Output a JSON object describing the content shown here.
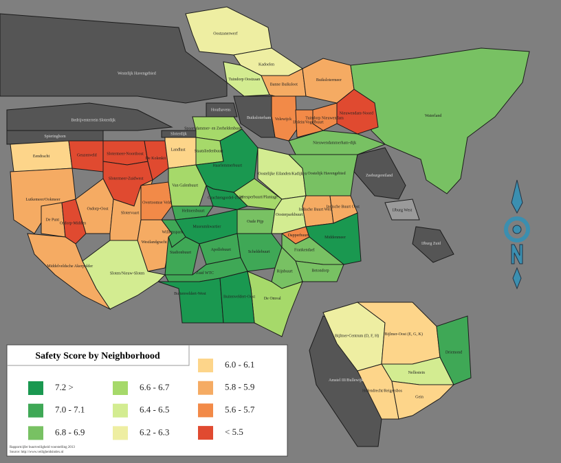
{
  "title": "Safety Score by Neighborhood",
  "legend": [
    {
      "label": "7.2 >",
      "color": "#1a9850"
    },
    {
      "label": "7.0 - 7.1",
      "color": "#3fa856"
    },
    {
      "label": "6.8 - 6.9",
      "color": "#78c163"
    },
    {
      "label": "6.6 - 6.7",
      "color": "#a6d96a"
    },
    {
      "label": "6.4 - 6.5",
      "color": "#d3ec91"
    },
    {
      "label": "6.2 - 6.3",
      "color": "#eeeea2"
    },
    {
      "label": "6.0 - 6.1",
      "color": "#fdd58a"
    },
    {
      "label": "5.8 - 5.9",
      "color": "#f5ab63"
    },
    {
      "label": "5.6 - 5.7",
      "color": "#f28a48"
    },
    {
      "label": "< 5.5",
      "color": "#e04a30"
    }
  ],
  "neighborhoods": [
    {
      "name": "Oostzanerwerf",
      "color": "#eeeea2"
    },
    {
      "name": "Kadoelen",
      "color": "#eeeea2"
    },
    {
      "name": "Tuindorp Oostzaan",
      "color": "#d3ec91"
    },
    {
      "name": "Banne Buiksloot",
      "color": "#f5ab63"
    },
    {
      "name": "Buikslotermeer",
      "color": "#f5ab63"
    },
    {
      "name": "Waterland",
      "color": "#78c163"
    },
    {
      "name": "Nieuwendam-Noord",
      "color": "#e04a30"
    },
    {
      "name": "Tuindorp Nieuwendam",
      "color": "#f28a48"
    },
    {
      "name": "Volewijck",
      "color": "#f28a48"
    },
    {
      "name": "IJplein/Vogelbuurt",
      "color": "#f28a48"
    },
    {
      "name": "Nieuwendammerham-dijk",
      "color": "#78c163"
    },
    {
      "name": "Buiksloterham",
      "color": "#555555"
    },
    {
      "name": "Westelijk Havengebied",
      "color": "#555555"
    },
    {
      "name": "Bedrijventerrein Sloterdijk",
      "color": "#555555"
    },
    {
      "name": "Spieringhorn",
      "color": "#555555"
    },
    {
      "name": "Eendracht",
      "color": "#fdd58a"
    },
    {
      "name": "Geuzenveld",
      "color": "#e04a30"
    },
    {
      "name": "Slotermeer-Noordoost",
      "color": "#e04a30"
    },
    {
      "name": "Slotermeer-Zuidwest",
      "color": "#e04a30"
    },
    {
      "name": "Lutkemeer/Ookmeer",
      "color": "#f5ab63"
    },
    {
      "name": "De Punt",
      "color": "#f5ab63"
    },
    {
      "name": "Osdorp-Midden",
      "color": "#e04a30"
    },
    {
      "name": "Osdorp-Oost",
      "color": "#f5ab63"
    },
    {
      "name": "Middelveldsche Akerpolder",
      "color": "#f5ab63"
    },
    {
      "name": "Slotervaart",
      "color": "#f5ab63"
    },
    {
      "name": "Overtoomse Veld",
      "color": "#f28a48"
    },
    {
      "name": "Westlandgracht",
      "color": "#f5ab63"
    },
    {
      "name": "Sloten/Nieuw-Sloten",
      "color": "#d3ec91"
    },
    {
      "name": "De Kolenkit",
      "color": "#e04a30"
    },
    {
      "name": "Landlust",
      "color": "#fdd58a"
    },
    {
      "name": "Sloterdijk",
      "color": "#555555"
    },
    {
      "name": "Spaarndammer- en Zeeheldenbuurt",
      "color": "#a6d96a"
    },
    {
      "name": "Houthavens",
      "color": "#555555"
    },
    {
      "name": "Staatsliedenbuurt",
      "color": "#a6d96a"
    },
    {
      "name": "Van Galenbuurt",
      "color": "#a6d96a"
    },
    {
      "name": "Haarlemmerbuurt",
      "color": "#1a9850"
    },
    {
      "name": "Oostelijke Eilanden/Kadijken",
      "color": "#d3ec91"
    },
    {
      "name": "Oostelijk Havengebied",
      "color": "#78c163"
    },
    {
      "name": "Weesperbuurt/Plantage",
      "color": "#a6d96a"
    },
    {
      "name": "Grachtengordel-Zuid",
      "color": "#1a9850"
    },
    {
      "name": "Helmersbuurt",
      "color": "#3fa856"
    },
    {
      "name": "Willemspark",
      "color": "#3fa856"
    },
    {
      "name": "Museumkwartier",
      "color": "#1a9850"
    },
    {
      "name": "Oude Pijp",
      "color": "#78c163"
    },
    {
      "name": "Oosterparkbuurt",
      "color": "#d3ec91"
    },
    {
      "name": "Indische Buurt West",
      "color": "#f5ab63"
    },
    {
      "name": "Indische Buurt Oost",
      "color": "#f5ab63"
    },
    {
      "name": "Dapperbuurt",
      "color": "#f28a48"
    },
    {
      "name": "Middenmeer",
      "color": "#1a9850"
    },
    {
      "name": "Frankendael",
      "color": "#78c163"
    },
    {
      "name": "Betondorp",
      "color": "#78c163"
    },
    {
      "name": "Stadionbuurt",
      "color": "#3fa856"
    },
    {
      "name": "Apollobuurt",
      "color": "#3fa856"
    },
    {
      "name": "Scheldebuurt",
      "color": "#3fa856"
    },
    {
      "name": "Zuid WTC",
      "color": "#3fa856"
    },
    {
      "name": "Rijnbuurt",
      "color": "#78c163"
    },
    {
      "name": "De Omval",
      "color": "#a6d96a"
    },
    {
      "name": "Buitenveldert-West",
      "color": "#1a9850"
    },
    {
      "name": "Buitenveldert-Oost",
      "color": "#1a9850"
    },
    {
      "name": "Zeeburgereiland",
      "color": "#555555"
    },
    {
      "name": "IJburg West",
      "color": "#9a9a9a"
    },
    {
      "name": "IJburg Zuid",
      "color": "#555555"
    },
    {
      "name": "Amstel III/Bullewijk",
      "color": "#555555"
    },
    {
      "name": "Bijlmer-Centrum (D, F, H)",
      "color": "#eeeea2"
    },
    {
      "name": "Bijlmer-Oost (E, G, K)",
      "color": "#fdd58a"
    },
    {
      "name": "Nellestein",
      "color": "#d3ec91"
    },
    {
      "name": "Driemond",
      "color": "#3fa856"
    },
    {
      "name": "Holendrecht/Reigersbos",
      "color": "#fdd58a"
    },
    {
      "name": "Gein",
      "color": "#fdd58a"
    }
  ],
  "source": [
    "Rapportcijfer buurtveiligheid voorstelling 2013",
    "Source: http://www.veiligheidsindex.nl"
  ]
}
